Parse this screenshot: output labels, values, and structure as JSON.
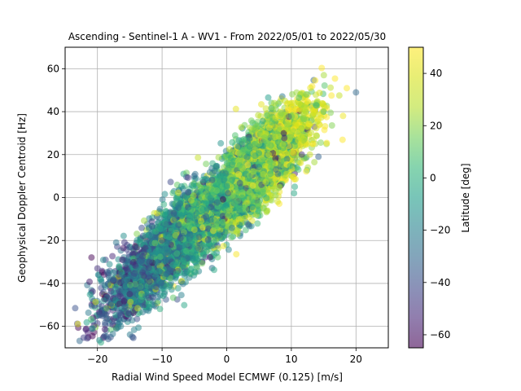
{
  "chart_data": {
    "type": "scatter",
    "title": "Ascending - Sentinel-1 A - WV1 - From 2022/05/01 to 2022/05/30",
    "xlabel": "Radial Wind Speed Model ECMWF (0.125) [m/s]",
    "ylabel": "Geophysical Doppler Centroid [Hz]",
    "xlim": [
      -25,
      25
    ],
    "ylim": [
      -70,
      70
    ],
    "xticks": [
      -20,
      -10,
      0,
      10,
      20
    ],
    "yticks": [
      -60,
      -40,
      -20,
      0,
      20,
      40,
      60
    ],
    "grid": true,
    "point_alpha": 0.5,
    "colorbar": {
      "label": "Latitude [deg]",
      "range": [
        -65,
        50
      ],
      "ticks": [
        -60,
        -40,
        -20,
        0,
        20,
        40
      ],
      "colormap": "viridis"
    },
    "points_summary": {
      "count": 7000,
      "relationship": "approximately linear, doppler ≈ 2.7 × wind speed",
      "doppler_spread_sd": 9,
      "latitude_trend": "southern latitudes cluster at negative wind speeds, northern latitudes at positive"
    },
    "points_sample": [
      {
        "x": -20,
        "y": -33,
        "lat": -50
      },
      {
        "x": -15,
        "y": -45,
        "lat": -55
      },
      {
        "x": -12,
        "y": -30,
        "lat": -45
      },
      {
        "x": -10,
        "y": -20,
        "lat": -40
      },
      {
        "x": -8,
        "y": -10,
        "lat": -30
      },
      {
        "x": -5,
        "y": -15,
        "lat": 30
      },
      {
        "x": -3,
        "y": -5,
        "lat": -10
      },
      {
        "x": 0,
        "y": 5,
        "lat": 0
      },
      {
        "x": 2,
        "y": 15,
        "lat": 10
      },
      {
        "x": 5,
        "y": 25,
        "lat": 20
      },
      {
        "x": 7,
        "y": 35,
        "lat": 15
      },
      {
        "x": 9,
        "y": 45,
        "lat": 30
      },
      {
        "x": 11,
        "y": 30,
        "lat": 40
      },
      {
        "x": 15,
        "y": 40,
        "lat": 10
      },
      {
        "x": 18,
        "y": 38,
        "lat": 45
      },
      {
        "x": 20,
        "y": 49,
        "lat": -30
      }
    ]
  }
}
